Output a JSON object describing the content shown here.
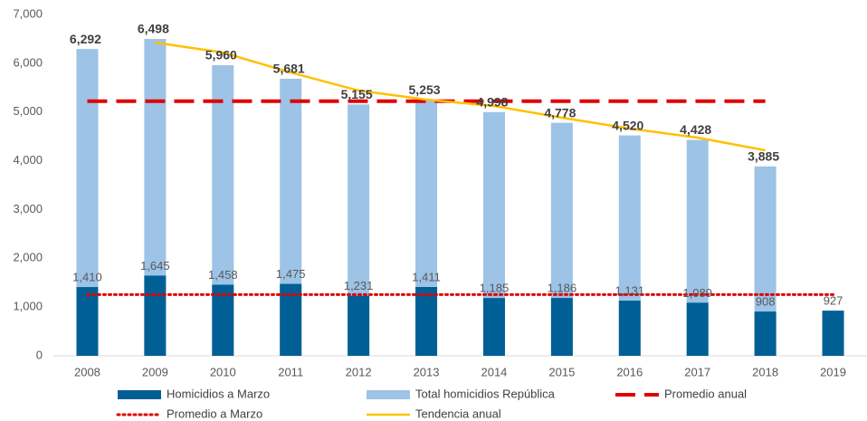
{
  "chart_data": {
    "type": "bar",
    "categories": [
      "2008",
      "2009",
      "2010",
      "2011",
      "2012",
      "2013",
      "2014",
      "2015",
      "2016",
      "2017",
      "2018",
      "2019"
    ],
    "series": [
      {
        "name": "Homicidios a Marzo",
        "type": "bar",
        "color": "#006096",
        "values": [
          1410,
          1645,
          1458,
          1475,
          1231,
          1411,
          1185,
          1186,
          1131,
          1089,
          908,
          927
        ],
        "value_labels": [
          "1,410",
          "1,645",
          "1,458",
          "1,475",
          "1,231",
          "1,411",
          "1,185",
          "1,186",
          "1,131",
          "1,089",
          "908",
          "927"
        ]
      },
      {
        "name": "Total homicidios República",
        "type": "bar",
        "color": "#9dc3e6",
        "values": [
          6292,
          6498,
          5960,
          5681,
          5155,
          5253,
          4998,
          4778,
          4520,
          4428,
          3885,
          null
        ],
        "value_labels": [
          "6,292",
          "6,498",
          "5,960",
          "5,681",
          "5,155",
          "5,253",
          "4,998",
          "4,778",
          "4,520",
          "4,428",
          "3,885",
          null
        ]
      },
      {
        "name": "Promedio anual",
        "type": "line",
        "style": "dashed",
        "color": "#e00000",
        "values": [
          5223,
          5223,
          5223,
          5223,
          5223,
          5223,
          5223,
          5223,
          5223,
          5223,
          5223,
          null
        ]
      },
      {
        "name": "Promedio a Marzo",
        "type": "line",
        "style": "dotted",
        "color": "#e00000",
        "values": [
          1255,
          1255,
          1255,
          1255,
          1255,
          1255,
          1255,
          1255,
          1255,
          1255,
          1255,
          1255
        ]
      },
      {
        "name": "Tendencia anual",
        "type": "line",
        "style": "solid",
        "color": "#ffc000",
        "values": [
          null,
          6424,
          6220,
          5811,
          5440,
          5254,
          5124,
          4883,
          4660,
          4475,
          4215,
          null
        ]
      }
    ],
    "ylim": [
      0,
      7000
    ],
    "yticks": [
      {
        "value": 0,
        "label": "0"
      },
      {
        "value": 1000,
        "label": "1,000"
      },
      {
        "value": 2000,
        "label": "2,000"
      },
      {
        "value": 3000,
        "label": "3,000"
      },
      {
        "value": 4000,
        "label": "4,000"
      },
      {
        "value": 5000,
        "label": "5,000"
      },
      {
        "value": 6000,
        "label": "6,000"
      },
      {
        "value": 7000,
        "label": "7,000"
      }
    ],
    "grid": false,
    "legend": "bottom"
  }
}
